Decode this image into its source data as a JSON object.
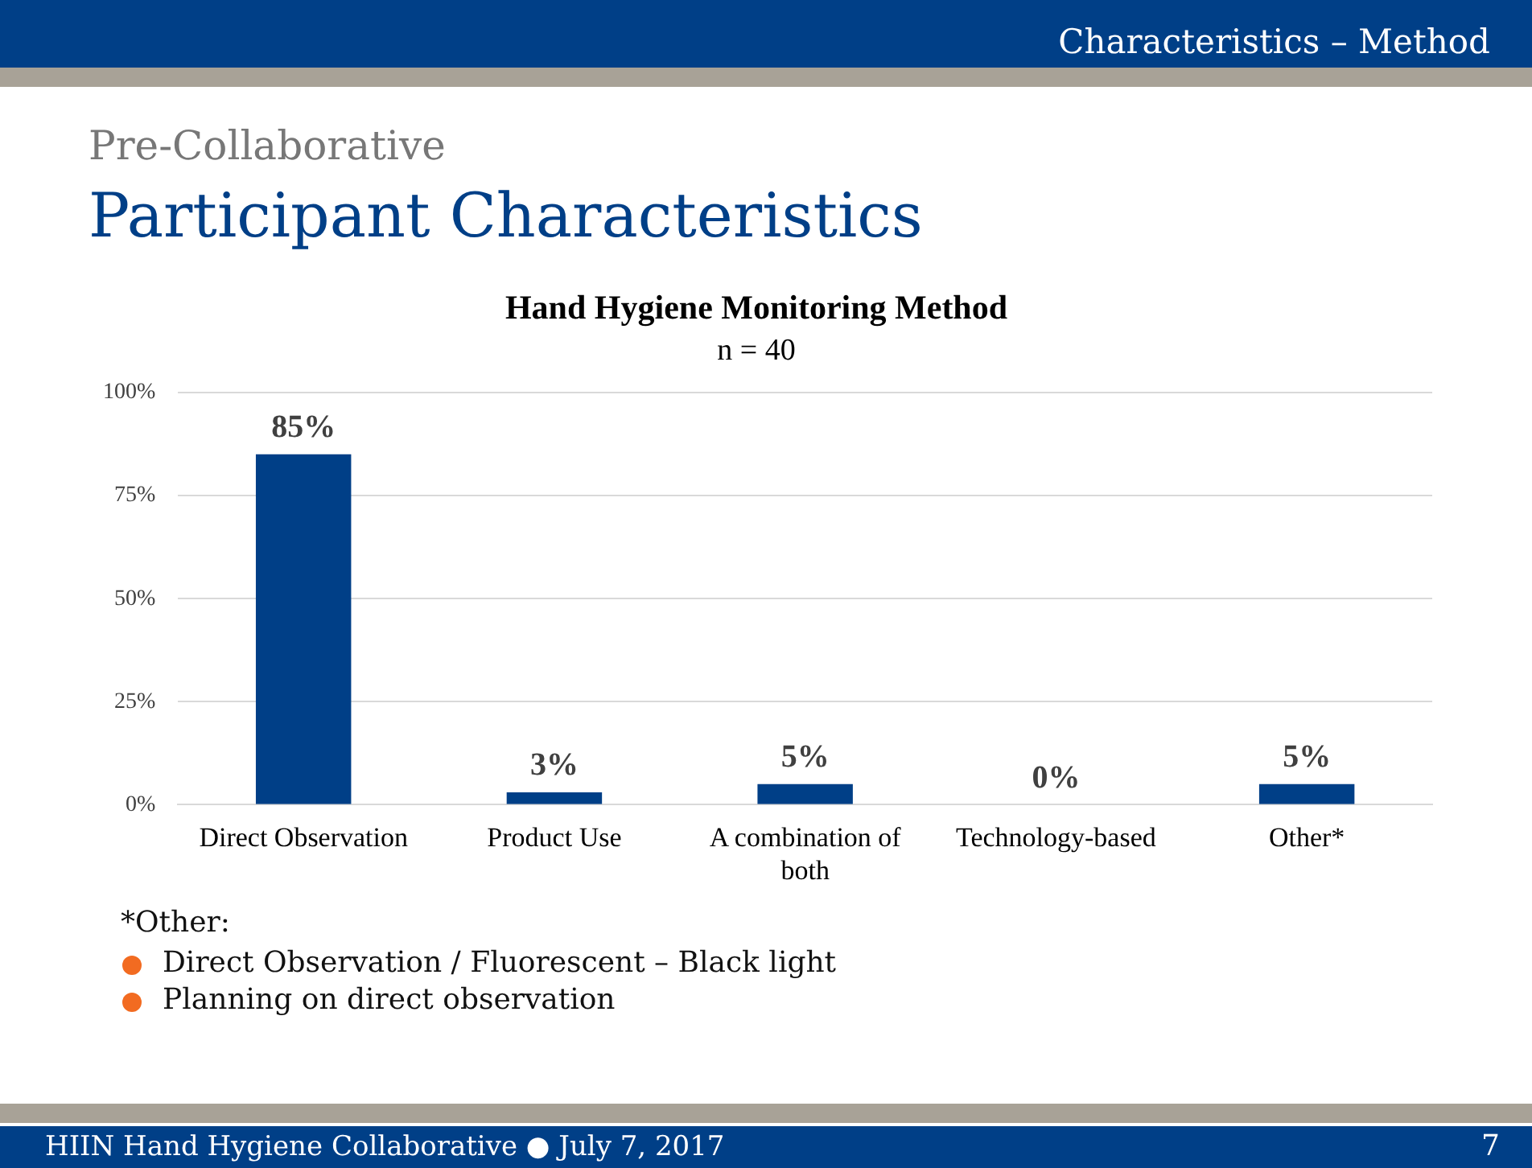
{
  "chart_data": {
    "type": "bar",
    "title": "Hand Hygiene Monitoring Method",
    "subtitle": "n = 40",
    "categories": [
      "Direct Observation",
      "Product Use",
      "A combination of both",
      "Technology-based",
      "Other*"
    ],
    "values": [
      85,
      3,
      5,
      0,
      5
    ],
    "value_labels": [
      "85%",
      "3%",
      "5%",
      "0%",
      "5%"
    ],
    "color": "#003f87",
    "ylim": [
      0,
      100
    ],
    "yticks": [
      {
        "value": 0,
        "label": "0%"
      },
      {
        "value": 25,
        "label": "25%"
      },
      {
        "value": 50,
        "label": "50%"
      },
      {
        "value": 75,
        "label": "75%"
      },
      {
        "value": 100,
        "label": "100%"
      }
    ],
    "grid": "y",
    "legend": false,
    "annotations": [
      "Characteristics – Method",
      "Pre-Collaborative",
      "Participant Characteristics",
      "*Other:",
      "Direct Observation / Fluorescent – Black light",
      "Planning on direct observation",
      "HIIN Hand Hygiene Collaborative ● July 7, 2017",
      "7"
    ]
  }
}
